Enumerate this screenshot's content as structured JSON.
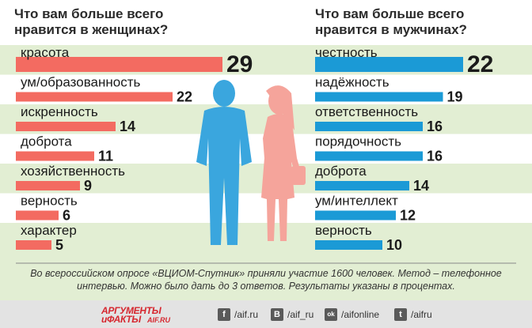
{
  "chart_data": [
    {
      "type": "bar",
      "title": "Что вам больше всего\nнравится в женщинах?",
      "categories": [
        "красота",
        "ум/образованность",
        "искренность",
        "доброта",
        "хозяйственность",
        "верность",
        "характер"
      ],
      "values": [
        29,
        22,
        14,
        11,
        9,
        6,
        5
      ],
      "bar_color": "#f36b61"
    },
    {
      "type": "bar",
      "title": "Что вам больше всего\nнравится в мужчинах?",
      "categories": [
        "честность",
        "надёжность",
        "ответственность",
        "порядочность",
        "доброта",
        "ум/интеллект",
        "верность"
      ],
      "values": [
        22,
        19,
        16,
        16,
        14,
        12,
        10
      ],
      "bar_color": "#1b9ad6"
    }
  ],
  "footnote": "Во всероссийском опросе «ВЦИОМ-Спутник» приняли участие 1600 человек. Метод – телефонное интервью. Можно было дать до 3 ответов. Результаты указаны в процентах.",
  "footer": {
    "logo_line1": "АРГУМЕНТЫ",
    "logo_line2": "иФАКТЫ",
    "logo_site": "AIF.RU",
    "social": [
      {
        "icon": "facebook-icon",
        "glyph": "f",
        "label": "/aif.ru"
      },
      {
        "icon": "vk-icon",
        "glyph": "B",
        "label": "/aif_ru"
      },
      {
        "icon": "odnoklassniki-icon",
        "glyph": "ok",
        "label": "/aifonline"
      },
      {
        "icon": "twitter-icon",
        "glyph": "t",
        "label": "/aifru"
      }
    ]
  },
  "colors": {
    "background_stripe": "#e2eed3",
    "man_silhouette": "#3aa6de",
    "woman_silhouette": "#f5a49b"
  }
}
